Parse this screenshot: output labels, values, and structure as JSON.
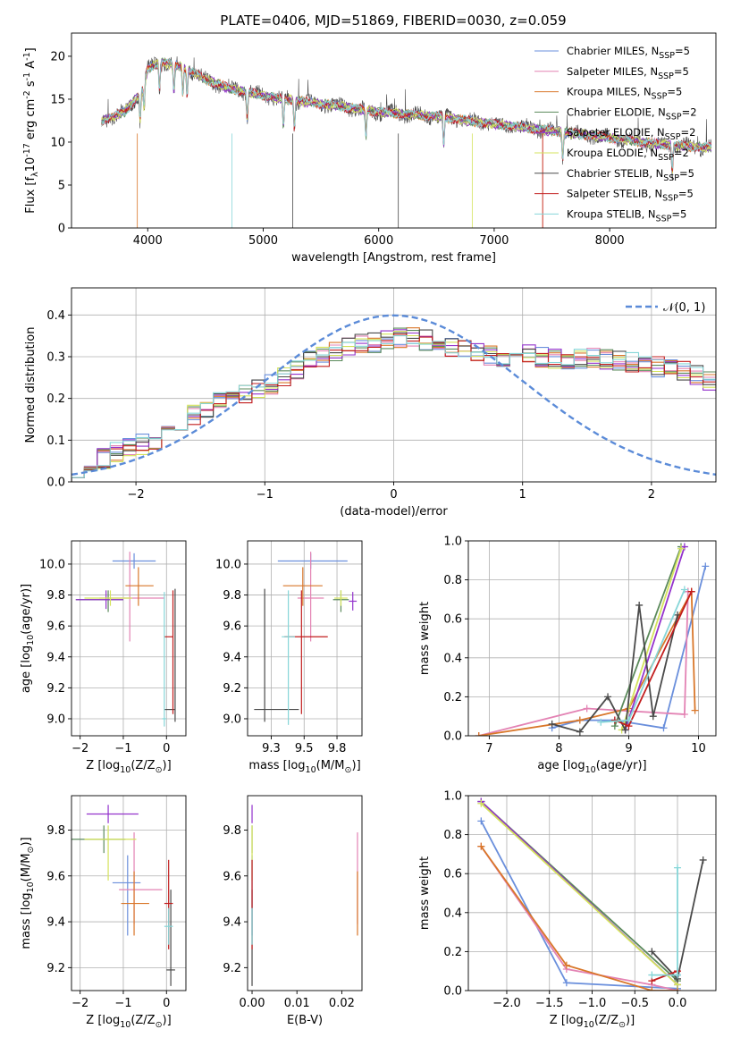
{
  "page_title": "PLATE=0406, MJD=51869, FIBERID=0030, z=0.059",
  "series_styles": [
    {
      "name": "Chabrier MILES, N$_{SSP}$=5",
      "color": "#6a8fdc"
    },
    {
      "name": "Salpeter MILES, N$_{SSP}$=5",
      "color": "#e383b4"
    },
    {
      "name": "Kroupa MILES, N$_{SSP}$=5",
      "color": "#d9772a"
    },
    {
      "name": "Chabrier ELODIE, N$_{SSP}$=2",
      "color": "#5b8a5b"
    },
    {
      "name": "Salpeter ELODIE, N$_{SSP}$=2",
      "color": "#9333cc"
    },
    {
      "name": "Kroupa ELODIE, N$_{SSP}$=2",
      "color": "#d4e35c"
    },
    {
      "name": "Chabrier STELIB, N$_{SSP}$=5",
      "color": "#4a4a4a"
    },
    {
      "name": "Salpeter STELIB, N$_{SSP}$=5",
      "color": "#c21e1e"
    },
    {
      "name": "Kroupa STELIB, N$_{SSP}$=5",
      "color": "#86d6d8"
    }
  ],
  "chart_data": [
    {
      "id": "spectrum",
      "type": "line",
      "xlabel": "wavelength [Angstrom, rest frame]",
      "ylabel": "Flux [f$_\\lambda$10$^{-17}$ erg cm$^{-2}$ s$^{-1}$ A$^{-1}$]",
      "xlim": [
        3340,
        8920
      ],
      "ylim": [
        0,
        22.7
      ],
      "xticks": [
        4000,
        5000,
        6000,
        7000,
        8000
      ],
      "yticks": [
        0,
        5,
        10,
        15,
        20
      ],
      "grid": false,
      "legend": "top-right",
      "continuum": [
        [
          3600,
          12.5
        ],
        [
          3800,
          13.5
        ],
        [
          3950,
          16
        ],
        [
          4000,
          18.5
        ],
        [
          4100,
          19.3
        ],
        [
          4300,
          18.8
        ],
        [
          4500,
          17.3
        ],
        [
          4700,
          16.3
        ],
        [
          5000,
          15.4
        ],
        [
          5300,
          14.8
        ],
        [
          5600,
          14.3
        ],
        [
          6000,
          13.5
        ],
        [
          6500,
          13
        ],
        [
          7000,
          12.1
        ],
        [
          7500,
          11.3
        ],
        [
          8000,
          10.5
        ],
        [
          8400,
          9.8
        ],
        [
          8800,
          9.4
        ]
      ],
      "absorption_lines": [
        3934,
        3969,
        4102,
        4227,
        4304,
        4341,
        4861,
        5175,
        5270,
        5890,
        6563,
        7594,
        8542
      ]
    },
    {
      "id": "residuals",
      "type": "histogram",
      "xlabel": "(data-model)/error",
      "ylabel": "Normed distribution",
      "xlim": [
        -2.5,
        2.5
      ],
      "ylim": [
        0,
        0.465
      ],
      "xticks": [
        -2,
        -1,
        0,
        1,
        2
      ],
      "yticks": [
        0.0,
        0.1,
        0.2,
        0.3,
        0.4
      ],
      "grid": true,
      "legend": "top-right",
      "gaussian_label": "$\\mathcal{N}(0, 1)$",
      "bin_edges_start": -2.5,
      "bin_width": 0.1,
      "mean_profile": [
        0.035,
        0.045,
        0.055,
        0.07,
        0.08,
        0.09,
        0.1,
        0.12,
        0.14,
        0.16,
        0.18,
        0.19,
        0.2,
        0.21,
        0.22,
        0.235,
        0.25,
        0.27,
        0.29,
        0.3,
        0.31,
        0.32,
        0.33,
        0.335,
        0.34,
        0.345,
        0.35,
        0.34,
        0.33,
        0.325,
        0.32,
        0.31,
        0.305,
        0.3,
        0.305,
        0.31,
        0.3,
        0.295,
        0.29,
        0.295,
        0.3,
        0.295,
        0.29,
        0.285,
        0.28,
        0.275,
        0.27,
        0.265,
        0.255,
        0.245,
        0.235,
        0.22,
        0.205,
        0.19,
        0.175,
        0.16,
        0.145,
        0.13,
        0.115,
        0.1,
        0.09,
        0.08,
        0.07,
        0.065,
        0.06,
        0.055,
        0.05,
        0.045,
        0.045,
        0.04,
        0.035,
        0.03,
        0.03,
        0.03
      ],
      "spread": 0.025
    },
    {
      "id": "age_vs_Z",
      "type": "errorbar",
      "xlabel": "Z [log$_{10}$($Z/Z_\\odot$)]",
      "ylabel": "age  [log$_{10}$($age/yr$)]",
      "xlim": [
        -2.2,
        0.45
      ],
      "ylim": [
        8.89,
        10.15
      ],
      "xticks": [
        -2,
        -1,
        0
      ],
      "yticks": [
        9.0,
        9.2,
        9.4,
        9.6,
        9.8,
        10.0
      ],
      "grid": true,
      "points": [
        {
          "s": 0,
          "x": -0.75,
          "y": 10.02,
          "xe": [
            0.5,
            0.5
          ],
          "ye": [
            0.05,
            0.05
          ]
        },
        {
          "s": 1,
          "x": -0.85,
          "y": 9.78,
          "xe": [
            0.7,
            0.8
          ],
          "ye": [
            0.28,
            0.3
          ]
        },
        {
          "s": 2,
          "x": -0.65,
          "y": 9.86,
          "xe": [
            0.3,
            0.35
          ],
          "ye": [
            0.13,
            0.12
          ]
        },
        {
          "s": 3,
          "x": -1.35,
          "y": 9.77,
          "xe": [
            0.75,
            0.35
          ],
          "ye": [
            0.08,
            0.06
          ]
        },
        {
          "s": 4,
          "x": -1.4,
          "y": 9.77,
          "xe": [
            0.7,
            0.4
          ],
          "ye": [
            0.06,
            0.06
          ]
        },
        {
          "s": 5,
          "x": -1.3,
          "y": 9.78,
          "xe": [
            0.6,
            0.5
          ],
          "ye": [
            0.05,
            0.05
          ]
        },
        {
          "s": 6,
          "x": 0.2,
          "y": 9.06,
          "xe": [
            0.25,
            0.0
          ],
          "ye": [
            0.08,
            0.78
          ]
        },
        {
          "s": 7,
          "x": 0.15,
          "y": 9.53,
          "xe": [
            0.2,
            0.0
          ],
          "ye": [
            0.5,
            0.3
          ]
        },
        {
          "s": 8,
          "x": -0.05,
          "y": 9.0,
          "xe": [
            0.05,
            0.05
          ],
          "ye": [
            0.05,
            0.82
          ]
        }
      ]
    },
    {
      "id": "age_vs_mass",
      "type": "errorbar",
      "xlabel": "mass [log$_{10}$($M/M_\\odot$)]",
      "ylabel": "",
      "xlim": [
        9.07,
        9.94
      ],
      "ylim": [
        8.89,
        10.15
      ],
      "xticks": [
        9.25,
        9.5,
        9.75
      ],
      "yticks": [
        9.0,
        9.2,
        9.4,
        9.6,
        9.8,
        10.0
      ],
      "grid": true,
      "points": [
        {
          "s": 0,
          "x": 9.55,
          "y": 10.02,
          "xe": [
            0.25,
            0.28
          ],
          "ye": [
            0.05,
            0.05
          ]
        },
        {
          "s": 1,
          "x": 9.55,
          "y": 9.78,
          "xe": [
            0.1,
            0.1
          ],
          "ye": [
            0.28,
            0.3
          ]
        },
        {
          "s": 2,
          "x": 9.49,
          "y": 9.86,
          "xe": [
            0.15,
            0.15
          ],
          "ye": [
            0.13,
            0.12
          ]
        },
        {
          "s": 3,
          "x": 9.78,
          "y": 9.77,
          "xe": [
            0.06,
            0.06
          ],
          "ye": [
            0.08,
            0.06
          ]
        },
        {
          "s": 4,
          "x": 9.87,
          "y": 9.76,
          "xe": [
            0.03,
            0.03
          ],
          "ye": [
            0.06,
            0.06
          ]
        },
        {
          "s": 5,
          "x": 9.78,
          "y": 9.78,
          "xe": [
            0.05,
            0.05
          ],
          "ye": [
            0.05,
            0.05
          ]
        },
        {
          "s": 6,
          "x": 9.2,
          "y": 9.06,
          "xe": [
            0.08,
            0.26
          ],
          "ye": [
            0.08,
            0.78
          ]
        },
        {
          "s": 7,
          "x": 9.48,
          "y": 9.53,
          "xe": [
            0.13,
            0.2
          ],
          "ye": [
            0.5,
            0.3
          ]
        },
        {
          "s": 8,
          "x": 9.38,
          "y": 9.53,
          "xe": [
            0.05,
            0.05
          ],
          "ye": [
            0.57,
            0.3
          ]
        }
      ]
    },
    {
      "id": "weight_vs_age",
      "type": "line",
      "xlabel": "age  [log$_{10}$($age/yr$)]",
      "ylabel": "mass weight",
      "xlim": [
        6.7,
        10.25
      ],
      "ylim": [
        0,
        1
      ],
      "xticks": [
        7,
        8,
        9,
        10
      ],
      "yticks": [
        0.0,
        0.2,
        0.4,
        0.6,
        0.8,
        1.0
      ],
      "grid": true,
      "series": [
        {
          "s": 0,
          "x": [
            7.9,
            8.3,
            8.8,
            9.5,
            10.1
          ],
          "y": [
            0.04,
            0.08,
            0.08,
            0.04,
            0.87
          ]
        },
        {
          "s": 1,
          "x": [
            6.85,
            8.4,
            9.8,
            9.85,
            9.85
          ],
          "y": [
            0.0,
            0.14,
            0.11,
            0.74,
            0.74
          ]
        },
        {
          "s": 2,
          "x": [
            6.85,
            8.3,
            9.0,
            9.9,
            9.95
          ],
          "y": [
            0.0,
            0.08,
            0.14,
            0.74,
            0.13
          ]
        },
        {
          "s": 3,
          "x": [
            8.8,
            9.75
          ],
          "y": [
            0.05,
            0.97
          ]
        },
        {
          "s": 4,
          "x": [
            8.95,
            9.8
          ],
          "y": [
            0.03,
            0.97
          ]
        },
        {
          "s": 5,
          "x": [
            8.9,
            9.75
          ],
          "y": [
            0.03,
            0.96
          ]
        },
        {
          "s": 6,
          "x": [
            7.9,
            8.3,
            8.7,
            8.95,
            9.15,
            9.35,
            9.7
          ],
          "y": [
            0.06,
            0.02,
            0.2,
            0.03,
            0.67,
            0.1,
            0.62
          ]
        },
        {
          "s": 7,
          "x": [
            8.8,
            9.0,
            9.9
          ],
          "y": [
            0.08,
            0.05,
            0.74
          ]
        },
        {
          "s": 8,
          "x": [
            8.6,
            9.0,
            9.8
          ],
          "y": [
            0.07,
            0.08,
            0.75
          ]
        }
      ]
    },
    {
      "id": "mass_vs_Z",
      "type": "errorbar",
      "xlabel": "Z [log$_{10}$($Z/Z_\\odot$)]",
      "ylabel": "mass [log$_{10}$($M/M_\\odot$)]",
      "xlim": [
        -2.2,
        0.45
      ],
      "ylim": [
        9.1,
        9.95
      ],
      "xticks": [
        -2,
        -1,
        0
      ],
      "yticks": [
        9.2,
        9.4,
        9.6,
        9.8
      ],
      "grid": true,
      "points": [
        {
          "s": 0,
          "x": -0.9,
          "y": 9.57,
          "xe": [
            0.35,
            0.3
          ],
          "ye": [
            0.23,
            0.12
          ]
        },
        {
          "s": 1,
          "x": -0.75,
          "y": 9.54,
          "xe": [
            0.35,
            0.65
          ],
          "ye": [
            0.15,
            0.25
          ]
        },
        {
          "s": 2,
          "x": -0.75,
          "y": 9.48,
          "xe": [
            0.3,
            0.35
          ],
          "ye": [
            0.14,
            0.14
          ]
        },
        {
          "s": 3,
          "x": -1.45,
          "y": 9.76,
          "xe": [
            0.75,
            0.5
          ],
          "ye": [
            0.06,
            0.06
          ]
        },
        {
          "s": 4,
          "x": -1.35,
          "y": 9.87,
          "xe": [
            0.5,
            0.7
          ],
          "ye": [
            0.04,
            0.04
          ]
        },
        {
          "s": 5,
          "x": -1.35,
          "y": 9.76,
          "xe": [
            0.55,
            0.65
          ],
          "ye": [
            0.18,
            0.06
          ]
        },
        {
          "s": 6,
          "x": 0.1,
          "y": 9.19,
          "xe": [
            0.1,
            0.1
          ],
          "ye": [
            0.07,
            0.35
          ]
        },
        {
          "s": 7,
          "x": 0.05,
          "y": 9.48,
          "xe": [
            0.1,
            0.1
          ],
          "ye": [
            0.2,
            0.19
          ]
        },
        {
          "s": 8,
          "x": 0.05,
          "y": 9.38,
          "xe": [
            0.1,
            0.1
          ],
          "ye": [
            0.08,
            0.08
          ]
        }
      ]
    },
    {
      "id": "mass_vs_ebv",
      "type": "errorbar",
      "xlabel": "E(B-V)",
      "ylabel": "",
      "xlim": [
        -0.001,
        0.0245
      ],
      "ylim": [
        9.1,
        9.95
      ],
      "xticks": [
        0.0,
        0.01,
        0.02
      ],
      "yticks": [
        9.2,
        9.4,
        9.6,
        9.8
      ],
      "grid": false,
      "points": [
        {
          "s": 0,
          "x": 0.0,
          "y": 9.57,
          "xe": [
            0,
            0
          ],
          "ye": [
            0.23,
            0.12
          ]
        },
        {
          "s": 1,
          "x": 0.0235,
          "y": 9.54,
          "xe": [
            0,
            0
          ],
          "ye": [
            0.15,
            0.25
          ]
        },
        {
          "s": 2,
          "x": 0.0235,
          "y": 9.48,
          "xe": [
            0,
            0
          ],
          "ye": [
            0.14,
            0.14
          ]
        },
        {
          "s": 3,
          "x": 0.0,
          "y": 9.76,
          "xe": [
            0,
            0
          ],
          "ye": [
            0.06,
            0.06
          ]
        },
        {
          "s": 4,
          "x": 0.0,
          "y": 9.87,
          "xe": [
            0,
            0
          ],
          "ye": [
            0.04,
            0.04
          ]
        },
        {
          "s": 5,
          "x": 0.0,
          "y": 9.76,
          "xe": [
            0,
            0
          ],
          "ye": [
            0.18,
            0.06
          ]
        },
        {
          "s": 6,
          "x": 0.0,
          "y": 9.19,
          "xe": [
            0,
            0
          ],
          "ye": [
            0.07,
            0.35
          ]
        },
        {
          "s": 7,
          "x": 0.0,
          "y": 9.48,
          "xe": [
            0,
            0
          ],
          "ye": [
            0.2,
            0.19
          ]
        },
        {
          "s": 8,
          "x": 0.0,
          "y": 9.38,
          "xe": [
            0,
            0
          ],
          "ye": [
            0.08,
            0.08
          ]
        }
      ]
    },
    {
      "id": "weight_vs_Z",
      "type": "line",
      "xlabel": "Z [log$_{10}$($Z/Z_\\odot$)]",
      "ylabel": "mass weight",
      "xlim": [
        -2.45,
        0.45
      ],
      "ylim": [
        0,
        1
      ],
      "xticks": [
        -2.0,
        -1.5,
        -1.0,
        -0.5,
        0.0
      ],
      "yticks": [
        0.0,
        0.2,
        0.4,
        0.6,
        0.8,
        1.0
      ],
      "grid": true,
      "series": [
        {
          "s": 0,
          "x": [
            -2.3,
            -1.3,
            0.0,
            0.0
          ],
          "y": [
            0.87,
            0.04,
            0.01,
            0.08
          ]
        },
        {
          "s": 1,
          "x": [
            -2.3,
            -1.3,
            -0.3,
            0.0
          ],
          "y": [
            0.74,
            0.11,
            0.03,
            0.0
          ]
        },
        {
          "s": 2,
          "x": [
            -2.3,
            -1.3,
            -0.3,
            0.0
          ],
          "y": [
            0.74,
            0.13,
            0.0,
            0.0
          ]
        },
        {
          "s": 3,
          "x": [
            -2.3,
            0.0
          ],
          "y": [
            0.97,
            0.05
          ]
        },
        {
          "s": 4,
          "x": [
            -2.3,
            0.0
          ],
          "y": [
            0.97,
            0.03
          ]
        },
        {
          "s": 5,
          "x": [
            -2.3,
            0.0
          ],
          "y": [
            0.96,
            0.03
          ]
        },
        {
          "s": 6,
          "x": [
            -0.3,
            0.0,
            0.3
          ],
          "y": [
            0.2,
            0.06,
            0.67
          ]
        },
        {
          "s": 7,
          "x": [
            -0.3,
            0.0
          ],
          "y": [
            0.05,
            0.1
          ]
        },
        {
          "s": 8,
          "x": [
            -0.3,
            0.0,
            0.0
          ],
          "y": [
            0.08,
            0.08,
            0.63
          ]
        }
      ]
    }
  ]
}
